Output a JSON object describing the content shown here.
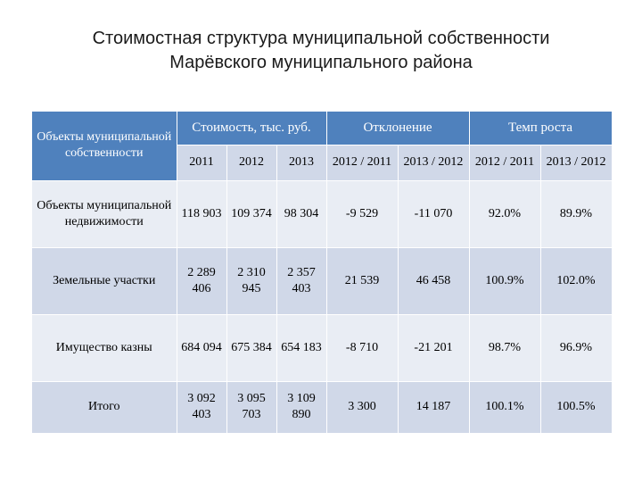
{
  "title": {
    "line1": "Стоимостная структура муниципальной собственности",
    "line2": "Марёвского муниципального района"
  },
  "table": {
    "header": {
      "col_objects": "Объекты муниципальной собственности",
      "group_cost": "Стоимость, тыс. руб.",
      "group_deviation": "Отклонение",
      "group_growth": "Темп роста",
      "sub": [
        "2011",
        "2012",
        "2013",
        "2012 / 2011",
        "2013 / 2012",
        "2012 / 2011",
        "2013 / 2012"
      ]
    },
    "rows": [
      {
        "name": "Объекты муниципальной недвижимости",
        "cells": [
          "118 903",
          "109 374",
          "98 304",
          "-9 529",
          "-11 070",
          "92.0%",
          "89.9%"
        ]
      },
      {
        "name": "Земельные участки",
        "cells": [
          "2 289 406",
          "2 310 945",
          "2 357 403",
          "21 539",
          "46 458",
          "100.9%",
          "102.0%"
        ]
      },
      {
        "name": "Имущество казны",
        "cells": [
          "684 094",
          "675 384",
          "654 183",
          "-8 710",
          "-21 201",
          "98.7%",
          "96.9%"
        ]
      },
      {
        "name": "Итого",
        "cells": [
          "3 092 403",
          "3 095 703",
          "3 109 890",
          "3 300",
          "14 187",
          "100.1%",
          "100.5%"
        ]
      }
    ]
  }
}
